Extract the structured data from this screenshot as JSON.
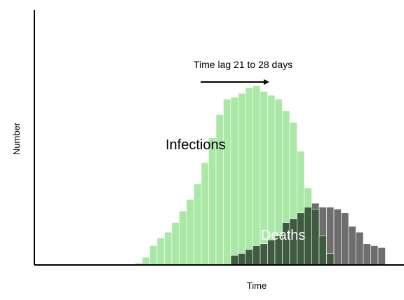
{
  "chart_data": {
    "type": "bar",
    "title": "",
    "xlabel": "Time",
    "ylabel": "Number",
    "grid": false,
    "legend": "none",
    "ylim": [
      0,
      100
    ],
    "bins": 41,
    "series": [
      {
        "name": "Infections",
        "color": "#a9e8a5",
        "start_bin": 7,
        "values": [
          1,
          4,
          10,
          14,
          17,
          22,
          28,
          34,
          42,
          53,
          66,
          78,
          86,
          87,
          89,
          92,
          93,
          90,
          88,
          86,
          80,
          74,
          59,
          40,
          29,
          15,
          6
        ]
      },
      {
        "name": "Deaths",
        "color": "#6e6e6e",
        "start_bin": 20,
        "values": [
          5,
          6,
          8,
          10,
          11,
          13,
          15,
          22,
          24,
          27,
          30,
          32,
          30,
          30,
          29,
          27,
          20,
          17,
          11,
          10,
          9,
          5
        ]
      }
    ],
    "overlap_color": "#3f5b3f",
    "annotations": {
      "infections_label": "Infections",
      "deaths_label": "Deaths",
      "lag_text": "Time lag  21  to 28 days"
    }
  }
}
